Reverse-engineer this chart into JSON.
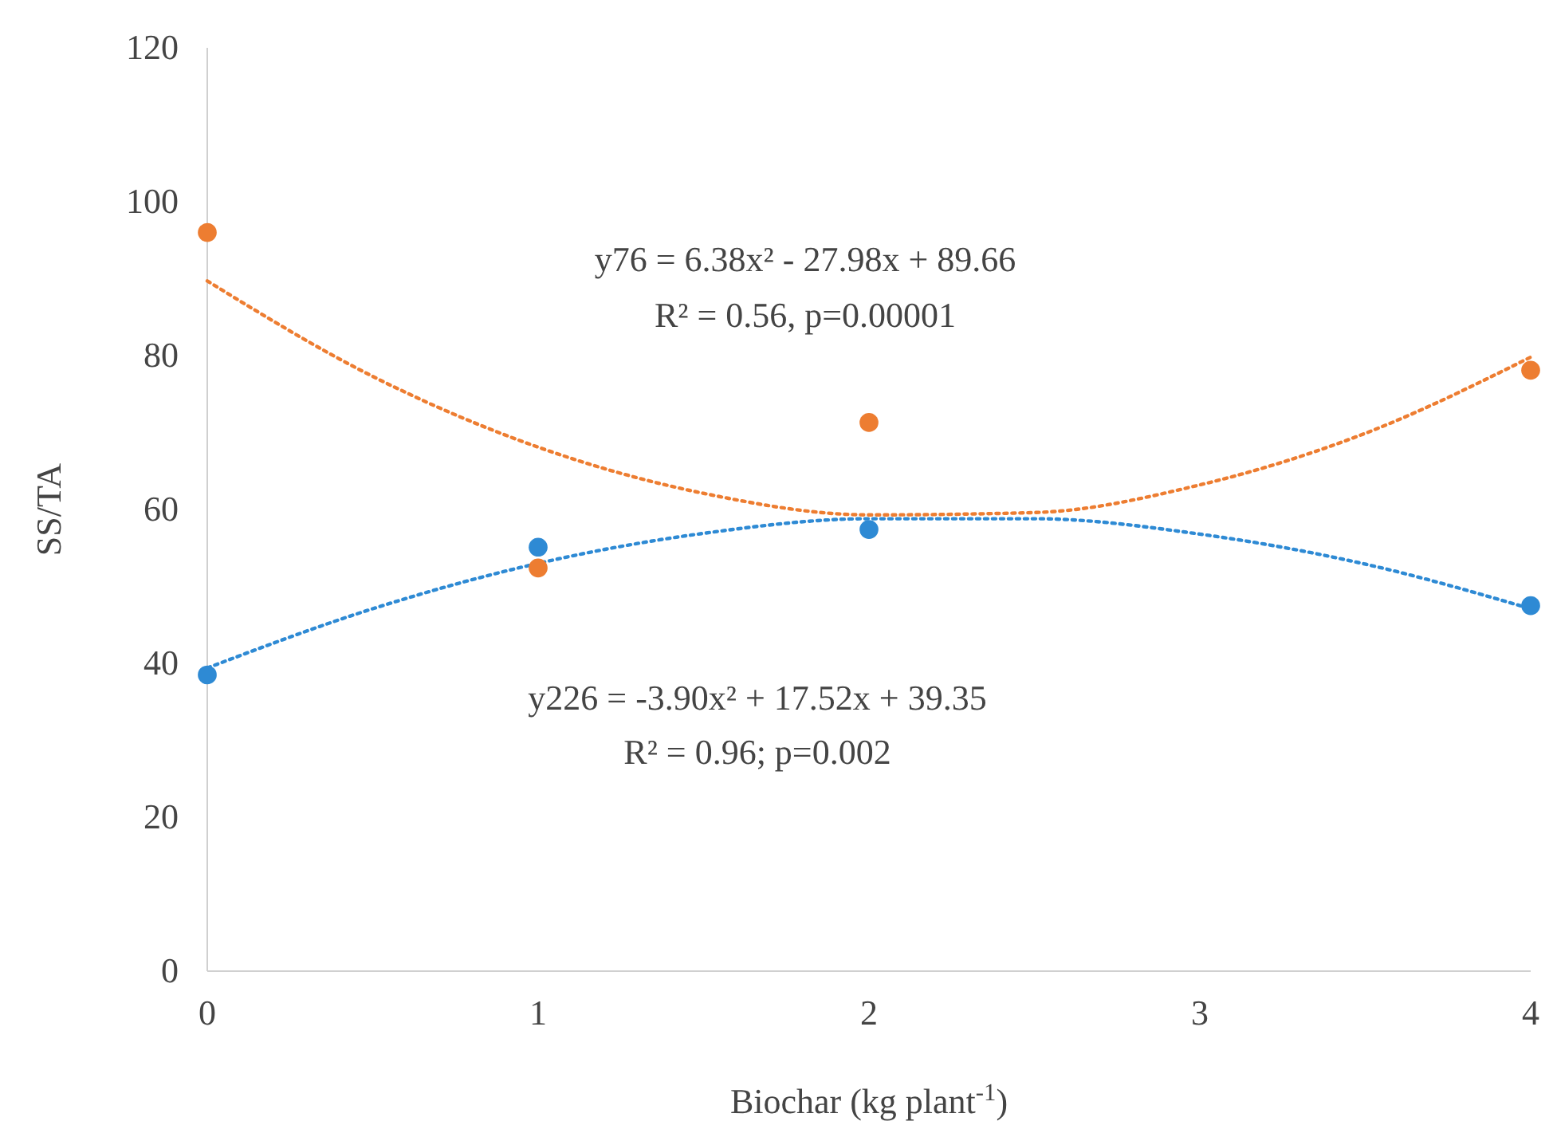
{
  "chart_data": {
    "type": "scatter",
    "xlabel": "Biochar (kg plant$^{-1}$)",
    "ylabel": "SS/TA",
    "xlim": [
      0,
      4
    ],
    "xticks": [
      0,
      1,
      2,
      3,
      4
    ],
    "ylim": [
      0,
      120
    ],
    "yticks": [
      0,
      20,
      40,
      60,
      80,
      100,
      120
    ],
    "grid": false,
    "marker": "circle",
    "series": [
      {
        "color": "#ed7d31",
        "x": [
          0,
          1,
          2,
          4
        ],
        "values": [
          96,
          52.4,
          71.3,
          78.1
        ]
      },
      {
        "color": "#2e8ad4",
        "x": [
          0,
          1,
          2,
          4
        ],
        "values": [
          38.5,
          55.1,
          57.4,
          47.5
        ]
      },
      {
        "type": "line",
        "line_style": "dotted",
        "marker": "none",
        "color": "#ed7d31",
        "x": [
          0,
          0.5,
          1,
          1.5,
          2,
          2.5,
          3,
          3.5,
          4
        ],
        "values": [
          89.7,
          77.3,
          68.1,
          62.1,
          59.3,
          59.6,
          63.2,
          69.9,
          79.8
        ]
      },
      {
        "type": "line",
        "line_style": "dotted",
        "marker": "none",
        "color": "#2e8ad4",
        "x": [
          0,
          0.5,
          1,
          1.5,
          2,
          2.5,
          3,
          3.5,
          4
        ],
        "values": [
          39.4,
          47.1,
          53.0,
          56.9,
          58.8,
          58.8,
          56.8,
          52.9,
          47.1
        ]
      }
    ],
    "annotations": [
      "y76 = 6.38x² - 27.98x + 89.66",
      "R² = 0.56, p=0.00001",
      "y226 = -3.90x² + 17.52x + 39.35",
      "R² = 0.96; p=0.002"
    ]
  }
}
